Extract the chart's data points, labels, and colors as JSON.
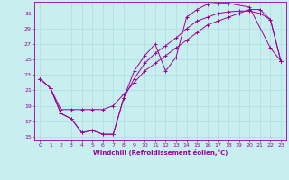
{
  "xlabel": "Windchill (Refroidissement éolien,°C)",
  "bg_color": "#c8eef0",
  "line_color": "#990099",
  "grid_color": "#aadddd",
  "xlim": [
    -0.5,
    23.5
  ],
  "ylim": [
    14.5,
    32.5
  ],
  "xticks": [
    0,
    1,
    2,
    3,
    4,
    5,
    6,
    7,
    8,
    9,
    10,
    11,
    12,
    13,
    14,
    15,
    16,
    17,
    18,
    19,
    20,
    21,
    22,
    23
  ],
  "yticks": [
    15,
    17,
    19,
    21,
    23,
    25,
    27,
    29,
    31
  ],
  "line1_x": [
    0,
    1,
    2,
    3,
    4,
    5,
    6,
    7,
    8,
    9,
    10,
    11,
    12,
    13,
    14,
    15,
    16,
    17,
    18,
    20,
    22,
    23
  ],
  "line1_y": [
    22.5,
    21.3,
    18.0,
    17.3,
    15.5,
    15.8,
    15.3,
    15.3,
    20.0,
    23.5,
    25.5,
    27.0,
    23.5,
    25.3,
    30.5,
    31.5,
    32.2,
    32.3,
    32.3,
    31.8,
    26.5,
    24.8
  ],
  "line2_x": [
    0,
    1,
    2,
    3,
    4,
    5,
    6,
    7,
    8,
    9,
    10,
    11,
    12,
    13,
    14,
    15,
    16,
    17,
    18,
    19,
    20,
    21,
    22,
    23
  ],
  "line2_y": [
    22.5,
    21.3,
    18.0,
    17.3,
    15.5,
    15.8,
    15.3,
    15.3,
    20.0,
    22.5,
    24.5,
    25.8,
    26.8,
    27.8,
    29.0,
    30.0,
    30.5,
    31.0,
    31.2,
    31.3,
    31.3,
    31.0,
    30.2,
    24.8
  ],
  "line3_x": [
    0,
    1,
    2,
    3,
    4,
    5,
    6,
    7,
    8,
    9,
    10,
    11,
    12,
    13,
    14,
    15,
    16,
    17,
    18,
    19,
    20,
    21,
    22,
    23
  ],
  "line3_y": [
    22.5,
    21.3,
    18.5,
    18.5,
    18.5,
    18.5,
    18.5,
    19.0,
    20.5,
    22.0,
    23.5,
    24.5,
    25.5,
    26.5,
    27.5,
    28.5,
    29.5,
    30.0,
    30.5,
    31.0,
    31.5,
    31.5,
    30.2,
    24.8
  ]
}
